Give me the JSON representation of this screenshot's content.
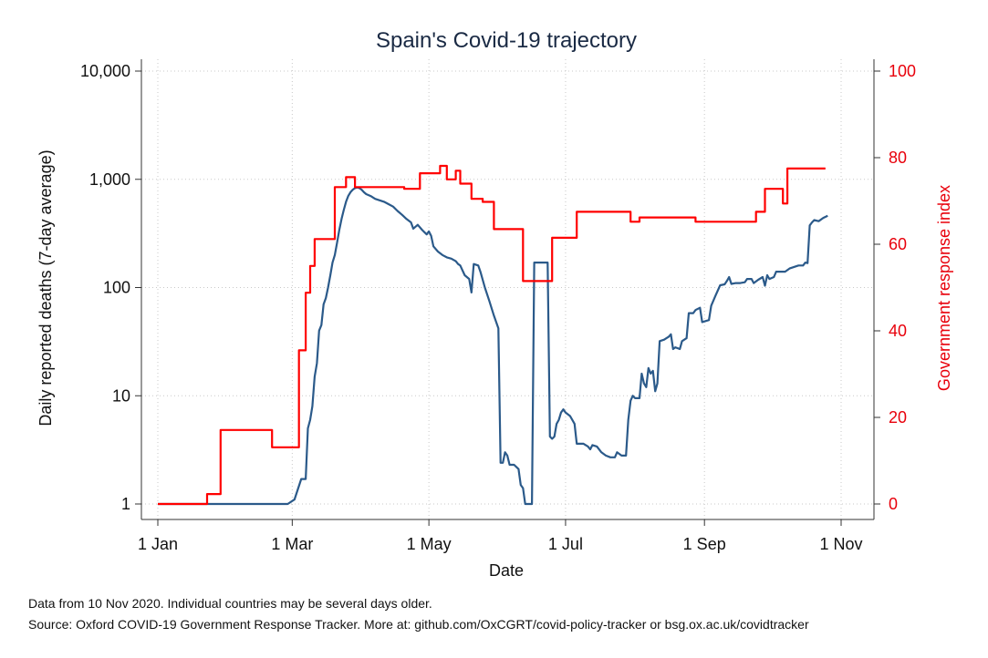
{
  "chart_data": {
    "type": "line",
    "title": "Spain's Covid-19 trajectory",
    "xlabel": "Date",
    "ylabel_left": "Daily reported deaths (7-day average)",
    "ylabel_right": "Government response index",
    "y_left_scale": "log",
    "y_left_lim": [
      1,
      10000
    ],
    "y_right_lim": [
      0,
      100
    ],
    "grid": true,
    "x_ticks": [
      {
        "day": 0,
        "label": "1 Jan"
      },
      {
        "day": 60,
        "label": "1 Mar"
      },
      {
        "day": 121,
        "label": "1 May"
      },
      {
        "day": 182,
        "label": "1 Jul"
      },
      {
        "day": 244,
        "label": "1 Sep"
      },
      {
        "day": 305,
        "label": "1 Nov"
      }
    ],
    "y_left_ticks": [
      {
        "value": 1,
        "label": "1"
      },
      {
        "value": 10,
        "label": "10"
      },
      {
        "value": 100,
        "label": "100"
      },
      {
        "value": 1000,
        "label": "1,000"
      },
      {
        "value": 10000,
        "label": "10,000"
      }
    ],
    "y_right_ticks": [
      {
        "value": 0,
        "label": "0"
      },
      {
        "value": 20,
        "label": "20"
      },
      {
        "value": 40,
        "label": "40"
      },
      {
        "value": 60,
        "label": "60"
      },
      {
        "value": 80,
        "label": "80"
      },
      {
        "value": 100,
        "label": "100"
      }
    ],
    "series": [
      {
        "color": "#2b5a8a",
        "axis": "left",
        "points": [
          [
            0,
            1
          ],
          [
            58,
            1
          ],
          [
            61,
            1.1
          ],
          [
            64,
            1.7
          ],
          [
            66,
            1.7
          ],
          [
            67,
            5
          ],
          [
            68,
            6
          ],
          [
            69,
            8
          ],
          [
            70,
            15
          ],
          [
            71,
            20
          ],
          [
            72,
            40
          ],
          [
            73,
            45
          ],
          [
            74,
            70
          ],
          [
            75,
            80
          ],
          [
            76,
            100
          ],
          [
            77,
            130
          ],
          [
            78,
            170
          ],
          [
            79,
            200
          ],
          [
            80,
            260
          ],
          [
            81,
            340
          ],
          [
            82,
            430
          ],
          [
            83,
            520
          ],
          [
            84,
            620
          ],
          [
            85,
            700
          ],
          [
            86,
            760
          ],
          [
            87,
            800
          ],
          [
            88,
            830
          ],
          [
            89,
            840
          ],
          [
            90,
            830
          ],
          [
            91,
            800
          ],
          [
            92,
            760
          ],
          [
            93,
            730
          ],
          [
            95,
            700
          ],
          [
            97,
            660
          ],
          [
            99,
            640
          ],
          [
            101,
            620
          ],
          [
            103,
            590
          ],
          [
            105,
            560
          ],
          [
            107,
            510
          ],
          [
            109,
            470
          ],
          [
            111,
            430
          ],
          [
            113,
            400
          ],
          [
            114,
            350
          ],
          [
            116,
            380
          ],
          [
            118,
            340
          ],
          [
            120,
            310
          ],
          [
            121,
            330
          ],
          [
            122,
            300
          ],
          [
            123,
            240
          ],
          [
            125,
            215
          ],
          [
            127,
            200
          ],
          [
            129,
            190
          ],
          [
            131,
            185
          ],
          [
            133,
            175
          ],
          [
            134,
            165
          ],
          [
            135,
            160
          ],
          [
            137,
            130
          ],
          [
            139,
            120
          ],
          [
            140,
            90
          ],
          [
            141,
            165
          ],
          [
            143,
            160
          ],
          [
            144,
            140
          ],
          [
            146,
            100
          ],
          [
            148,
            75
          ],
          [
            150,
            55
          ],
          [
            152,
            42
          ],
          [
            153,
            2.4
          ],
          [
            154,
            2.4
          ],
          [
            155,
            3
          ],
          [
            156,
            2.8
          ],
          [
            157,
            2.3
          ],
          [
            159,
            2.3
          ],
          [
            161,
            2.1
          ],
          [
            162,
            1.5
          ],
          [
            163,
            1.4
          ],
          [
            164,
            1
          ],
          [
            167,
            1
          ],
          [
            168,
            170
          ],
          [
            174,
            170
          ],
          [
            175,
            4.2
          ],
          [
            176,
            4
          ],
          [
            177,
            4.2
          ],
          [
            178,
            5.5
          ],
          [
            179,
            6
          ],
          [
            180,
            7
          ],
          [
            181,
            7.5
          ],
          [
            182,
            7
          ],
          [
            184,
            6.5
          ],
          [
            186,
            5.5
          ],
          [
            187,
            3.6
          ],
          [
            190,
            3.6
          ],
          [
            192,
            3.4
          ],
          [
            193,
            3.2
          ],
          [
            194,
            3.5
          ],
          [
            196,
            3.4
          ],
          [
            198,
            3
          ],
          [
            200,
            2.8
          ],
          [
            202,
            2.7
          ],
          [
            204,
            2.7
          ],
          [
            205,
            3
          ],
          [
            207,
            2.8
          ],
          [
            209,
            2.8
          ],
          [
            210,
            6
          ],
          [
            211,
            9
          ],
          [
            212,
            10
          ],
          [
            213,
            9.5
          ],
          [
            215,
            9.5
          ],
          [
            216,
            16
          ],
          [
            217,
            13
          ],
          [
            218,
            12
          ],
          [
            219,
            18
          ],
          [
            220,
            16
          ],
          [
            221,
            17
          ],
          [
            222,
            11
          ],
          [
            223,
            13
          ],
          [
            224,
            32
          ],
          [
            226,
            33
          ],
          [
            227,
            34
          ],
          [
            228,
            35
          ],
          [
            229,
            37
          ],
          [
            230,
            27
          ],
          [
            231,
            28
          ],
          [
            233,
            27
          ],
          [
            234,
            32
          ],
          [
            236,
            34
          ],
          [
            237,
            58
          ],
          [
            239,
            58
          ],
          [
            240,
            62
          ],
          [
            242,
            65
          ],
          [
            243,
            48
          ],
          [
            246,
            50
          ],
          [
            247,
            68
          ],
          [
            249,
            85
          ],
          [
            251,
            105
          ],
          [
            253,
            107
          ],
          [
            254,
            115
          ],
          [
            255,
            125
          ],
          [
            256,
            108
          ],
          [
            258,
            110
          ],
          [
            260,
            110
          ],
          [
            262,
            112
          ],
          [
            263,
            120
          ],
          [
            265,
            120
          ],
          [
            266,
            110
          ],
          [
            268,
            118
          ],
          [
            270,
            125
          ],
          [
            271,
            104
          ],
          [
            272,
            130
          ],
          [
            273,
            120
          ],
          [
            275,
            125
          ],
          [
            276,
            140
          ],
          [
            278,
            140
          ],
          [
            280,
            140
          ],
          [
            282,
            150
          ],
          [
            284,
            155
          ],
          [
            286,
            160
          ],
          [
            288,
            160
          ],
          [
            289,
            170
          ],
          [
            290,
            168
          ],
          [
            291,
            375
          ],
          [
            292,
            400
          ],
          [
            293,
            420
          ],
          [
            295,
            410
          ],
          [
            297,
            440
          ],
          [
            299,
            460
          ]
        ]
      },
      {
        "color": "#ff0000",
        "axis": "right",
        "points": [
          [
            0,
            0
          ],
          [
            22,
            0
          ],
          [
            22,
            2.3
          ],
          [
            28,
            2.3
          ],
          [
            28,
            17.1
          ],
          [
            51,
            17.1
          ],
          [
            51,
            13.1
          ],
          [
            63,
            13.1
          ],
          [
            63,
            35.5
          ],
          [
            66,
            35.5
          ],
          [
            66,
            48.8
          ],
          [
            68,
            48.8
          ],
          [
            68,
            55
          ],
          [
            70,
            55
          ],
          [
            70,
            61.2
          ],
          [
            79,
            61.2
          ],
          [
            79,
            73.2
          ],
          [
            84,
            73.2
          ],
          [
            84,
            75.5
          ],
          [
            88,
            75.5
          ],
          [
            88,
            73.2
          ],
          [
            110,
            73.2
          ],
          [
            110,
            72.8
          ],
          [
            117,
            72.8
          ],
          [
            117,
            76.4
          ],
          [
            126,
            76.4
          ],
          [
            126,
            78.1
          ],
          [
            129,
            78.1
          ],
          [
            129,
            75
          ],
          [
            133,
            75
          ],
          [
            133,
            77
          ],
          [
            135,
            77
          ],
          [
            135,
            74
          ],
          [
            140,
            74
          ],
          [
            140,
            70.5
          ],
          [
            145,
            70.5
          ],
          [
            145,
            69.8
          ],
          [
            150,
            69.8
          ],
          [
            150,
            63.5
          ],
          [
            163,
            63.5
          ],
          [
            163,
            51.5
          ],
          [
            176,
            51.5
          ],
          [
            176,
            61.5
          ],
          [
            187,
            61.5
          ],
          [
            187,
            67.5
          ],
          [
            211,
            67.5
          ],
          [
            211,
            65.2
          ],
          [
            215,
            65.2
          ],
          [
            215,
            66.2
          ],
          [
            240,
            66.2
          ],
          [
            240,
            65.2
          ],
          [
            267,
            65.2
          ],
          [
            267,
            67.5
          ],
          [
            271,
            67.5
          ],
          [
            271,
            72.8
          ],
          [
            279,
            72.8
          ],
          [
            279,
            69.4
          ],
          [
            281,
            69.4
          ],
          [
            281,
            77.5
          ],
          [
            298,
            77.5
          ]
        ]
      }
    ]
  },
  "footnotes": {
    "line1": "Data from 10 Nov 2020. Individual countries may be several days older.",
    "line2": "Source: Oxford COVID-19 Government Response Tracker. More at: github.com/OxCGRT/covid-policy-tracker or bsg.ox.ac.uk/covidtracker"
  }
}
